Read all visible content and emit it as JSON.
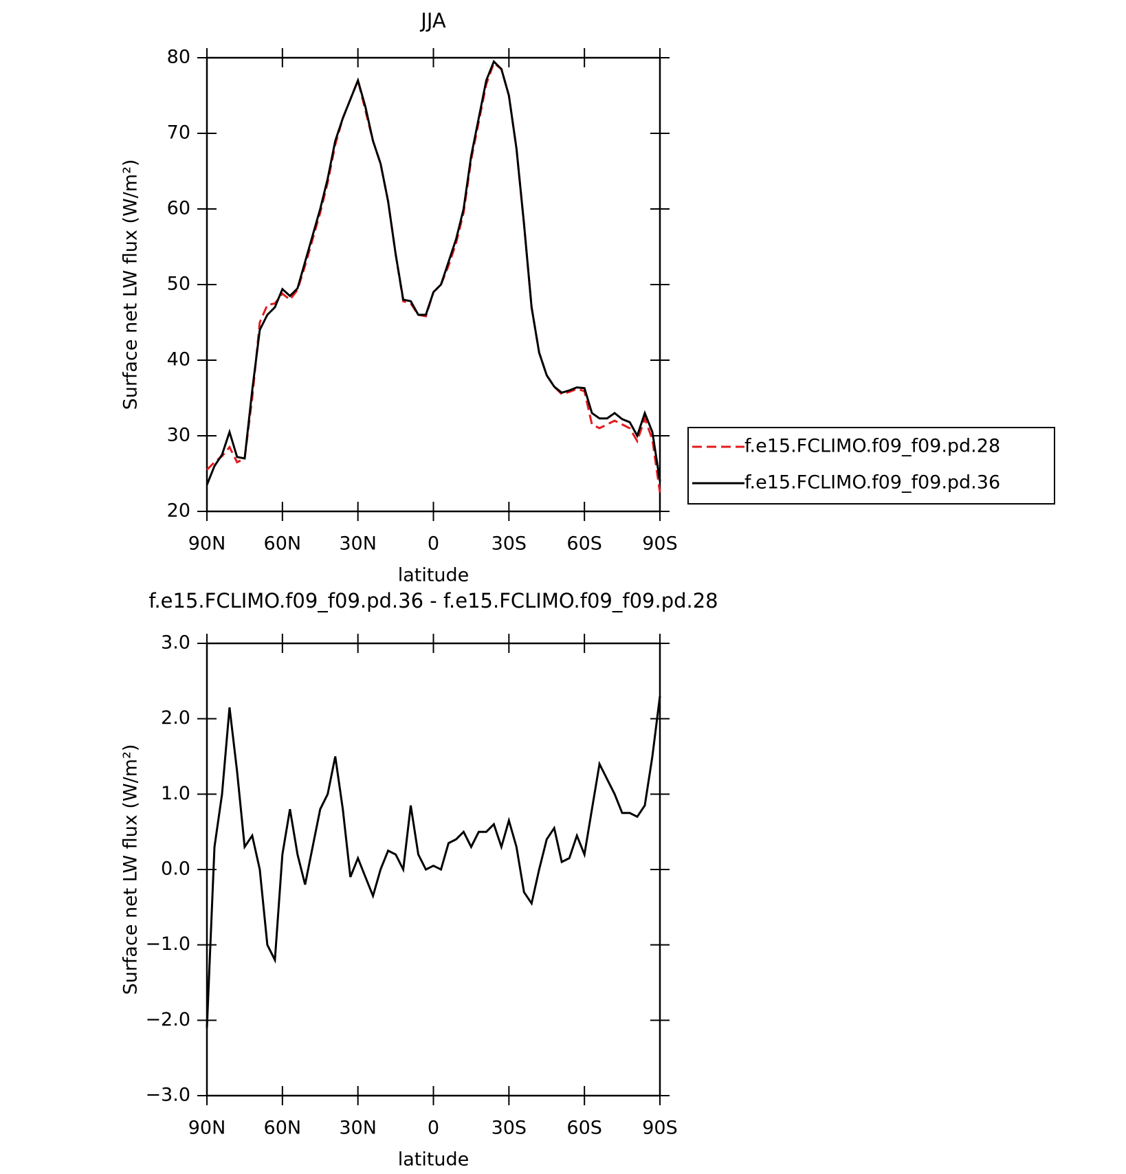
{
  "chart_data": [
    {
      "type": "line",
      "title": "JJA",
      "xlabel": "latitude",
      "ylabel": "Surface net LW flux (W/m²)",
      "x": [
        90,
        87,
        84,
        81,
        78,
        75,
        72,
        69,
        66,
        63,
        60,
        57,
        54,
        51,
        48,
        45,
        42,
        39,
        36,
        33,
        30,
        27,
        24,
        21,
        18,
        15,
        12,
        9,
        6,
        3,
        0,
        -3,
        -6,
        -9,
        -12,
        -15,
        -18,
        -21,
        -24,
        -27,
        -30,
        -33,
        -36,
        -39,
        -42,
        -45,
        -48,
        -51,
        -54,
        -57,
        -60,
        -63,
        -66,
        -69,
        -72,
        -75,
        -78,
        -81,
        -84,
        -87,
        -90
      ],
      "series": [
        {
          "name": "f.e15.FCLIMO.f09_f09.pd.28",
          "color": "#e41a1c",
          "linestyle": "dashed",
          "values": [
            25.5,
            26.5,
            27.3,
            28.5,
            26.5,
            27,
            35,
            45,
            47.3,
            47.5,
            48.8,
            48,
            49.3,
            52.5,
            56,
            59.5,
            63.5,
            68.5,
            72,
            74.5,
            77,
            73,
            69,
            66,
            61,
            54,
            47.8,
            47.5,
            46,
            45.8,
            49,
            50,
            52.5,
            55.5,
            59.5,
            66.5,
            71.5,
            76.5,
            79.3,
            78.5,
            75,
            68,
            58,
            47,
            41,
            38,
            36.5,
            35.5,
            35.8,
            36.2,
            35.9,
            31.5,
            31,
            31.5,
            32,
            31.5,
            31,
            29.3,
            32.3,
            29.5,
            22.5
          ]
        },
        {
          "name": "f.e15.FCLIMO.f09_f09.pd.36",
          "color": "#000000",
          "linestyle": "solid",
          "values": [
            23.5,
            26,
            27.5,
            30.5,
            27.2,
            27,
            36,
            44,
            46,
            47,
            49.4,
            48.5,
            49.5,
            53,
            56.5,
            60,
            64,
            69,
            72,
            74.5,
            77,
            73.5,
            69,
            66,
            61,
            54,
            48,
            47.8,
            46,
            46,
            49,
            50,
            53,
            56,
            60,
            67,
            72,
            77,
            79.5,
            78.5,
            75,
            68,
            58,
            47,
            41,
            38,
            36.5,
            35.7,
            36,
            36.4,
            36.3,
            33,
            32.3,
            32.3,
            33,
            32.2,
            31.8,
            30,
            33,
            30.5,
            24
          ]
        }
      ],
      "xlim": [
        90,
        -90
      ],
      "xticks": [
        {
          "value": 90,
          "label": "90N"
        },
        {
          "value": 60,
          "label": "60N"
        },
        {
          "value": 30,
          "label": "30N"
        },
        0,
        {
          "value": -30,
          "label": "30S"
        },
        {
          "value": -60,
          "label": "60S"
        },
        {
          "value": -90,
          "label": "90S"
        }
      ],
      "ylim": [
        20,
        80
      ],
      "yticks": [
        20,
        30,
        40,
        50,
        60,
        70,
        80
      ],
      "legend": "right"
    },
    {
      "type": "line",
      "title": "f.e15.FCLIMO.f09_f09.pd.36 - f.e15.FCLIMO.f09_f09.pd.28",
      "xlabel": "latitude",
      "ylabel": "Surface net LW flux (W/m²)",
      "x": [
        90,
        87,
        84,
        81,
        78,
        75,
        72,
        69,
        66,
        63,
        60,
        57,
        54,
        51,
        48,
        45,
        42,
        39,
        36,
        33,
        30,
        27,
        24,
        21,
        18,
        15,
        12,
        9,
        6,
        3,
        0,
        -3,
        -6,
        -9,
        -12,
        -15,
        -18,
        -21,
        -24,
        -27,
        -30,
        -33,
        -36,
        -39,
        -42,
        -45,
        -48,
        -51,
        -54,
        -57,
        -60,
        -63,
        -66,
        -69,
        -72,
        -75,
        -78,
        -81,
        -84,
        -87,
        -90
      ],
      "series": [
        {
          "color": "#000000",
          "linestyle": "solid",
          "values": [
            -2.1,
            0.3,
            1.0,
            2.15,
            1.3,
            0.3,
            0.45,
            0.0,
            -1.0,
            -1.2,
            0.2,
            0.8,
            0.2,
            -0.2,
            0.3,
            0.8,
            1.0,
            1.5,
            0.8,
            -0.1,
            0.15,
            -0.1,
            -0.35,
            0.0,
            0.25,
            0.2,
            0.0,
            0.85,
            0.2,
            0.0,
            0.05,
            0.0,
            0.35,
            0.4,
            0.5,
            0.3,
            0.5,
            0.5,
            0.6,
            0.3,
            0.65,
            0.3,
            -0.3,
            -0.45,
            0.0,
            0.4,
            0.55,
            0.1,
            0.15,
            0.45,
            0.2,
            0.8,
            1.4,
            1.2,
            1.0,
            0.75,
            0.75,
            0.7,
            0.85,
            1.5,
            2.3
          ]
        }
      ],
      "xlim": [
        90,
        -90
      ],
      "xticks": [
        {
          "value": 90,
          "label": "90N"
        },
        {
          "value": 60,
          "label": "60N"
        },
        {
          "value": 30,
          "label": "30N"
        },
        0,
        {
          "value": -30,
          "label": "30S"
        },
        {
          "value": -60,
          "label": "60S"
        },
        {
          "value": -90,
          "label": "90S"
        }
      ],
      "ylim": [
        -3,
        3
      ],
      "yticks": [
        {
          "value": -3,
          "label": "−3.0"
        },
        {
          "value": -2,
          "label": "−2.0"
        },
        {
          "value": -1,
          "label": "−1.0"
        },
        {
          "value": 0,
          "label": "0.0"
        },
        {
          "value": 1,
          "label": "1.0"
        },
        {
          "value": 2,
          "label": "2.0"
        },
        {
          "value": 3,
          "label": "3.0"
        }
      ]
    }
  ]
}
